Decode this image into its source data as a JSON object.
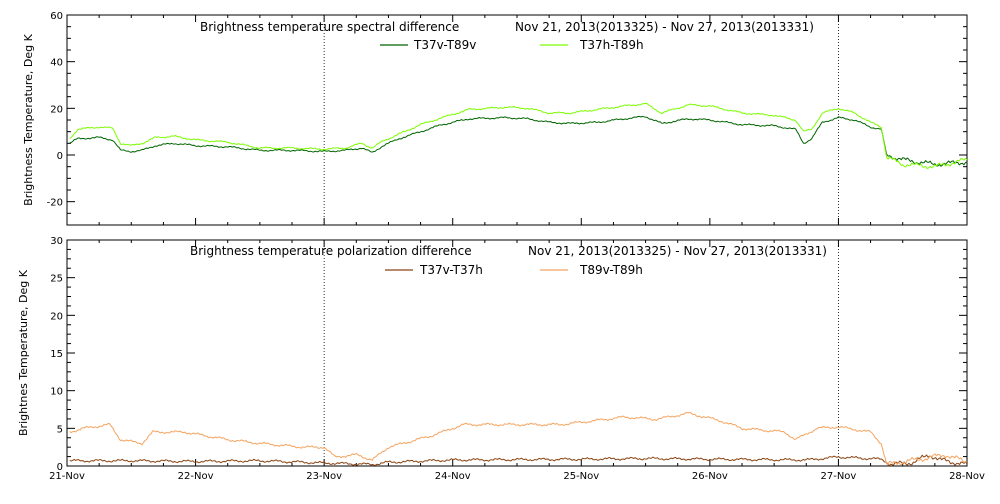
{
  "chart_data": [
    {
      "type": "line",
      "title": "Brightness temperature spectral difference",
      "date_range": "Nov 21, 2013(2013325) - Nov 27, 2013(2013331)",
      "ylabel": "Brightness Temperature, Deg K",
      "xlabel": "",
      "xlim": [
        "2013-11-21",
        "2013-11-28"
      ],
      "ylim": [
        -30,
        60
      ],
      "yticks": [
        -20,
        0,
        20,
        40,
        60
      ],
      "grid": "vertical dotted lines at Nov 23 and Nov 27",
      "legend_position": "top",
      "series": [
        {
          "name": "T37v-T89v",
          "color": "#006400",
          "points": [
            [
              "2013-11-21 00:30",
              5
            ],
            [
              "2013-11-21 02:00",
              7
            ],
            [
              "2013-11-21 06:00",
              7.5
            ],
            [
              "2013-11-21 08:30",
              6.5
            ],
            [
              "2013-11-21 10:00",
              2
            ],
            [
              "2013-11-21 12:00",
              1.5
            ],
            [
              "2013-11-21 14:00",
              2
            ],
            [
              "2013-11-21 16:30",
              4
            ],
            [
              "2013-11-21 20:00",
              5
            ],
            [
              "2013-11-22 00:00",
              4
            ],
            [
              "2013-11-22 06:00",
              3.5
            ],
            [
              "2013-11-22 12:00",
              2
            ],
            [
              "2013-11-22 18:00",
              2
            ],
            [
              "2013-11-23 00:00",
              1.5
            ],
            [
              "2013-11-23 04:00",
              2
            ],
            [
              "2013-11-23 07:00",
              3
            ],
            [
              "2013-11-23 09:00",
              1
            ],
            [
              "2013-11-23 11:00",
              4
            ],
            [
              "2013-11-23 14:00",
              7
            ],
            [
              "2013-11-23 18:00",
              10
            ],
            [
              "2013-11-23 22:00",
              13
            ],
            [
              "2013-11-24 03:00",
              15.5
            ],
            [
              "2013-11-24 10:00",
              16
            ],
            [
              "2013-11-24 14:00",
              15.5
            ],
            [
              "2013-11-24 18:00",
              14
            ],
            [
              "2013-11-24 22:00",
              13.5
            ],
            [
              "2013-11-25 03:00",
              14
            ],
            [
              "2013-11-25 08:00",
              15.5
            ],
            [
              "2013-11-25 12:00",
              16.5
            ],
            [
              "2013-11-25 15:00",
              13.5
            ],
            [
              "2013-11-25 20:00",
              15.5
            ],
            [
              "2013-11-26 00:00",
              15
            ],
            [
              "2013-11-26 06:00",
              13
            ],
            [
              "2013-11-26 12:00",
              12.5
            ],
            [
              "2013-11-26 16:00",
              11
            ],
            [
              "2013-11-26 17:30",
              5
            ],
            [
              "2013-11-26 19:00",
              7
            ],
            [
              "2013-11-26 21:00",
              14
            ],
            [
              "2013-11-27 00:00",
              16
            ],
            [
              "2013-11-27 03:00",
              15
            ],
            [
              "2013-11-27 06:00",
              12
            ],
            [
              "2013-11-27 08:00",
              11
            ],
            [
              "2013-11-27 09:00",
              0
            ],
            [
              "2013-11-27 12:00",
              -2
            ],
            [
              "2013-11-27 18:00",
              -4
            ],
            [
              "2013-11-28 00:00",
              -3
            ]
          ]
        },
        {
          "name": "T37h-T89h",
          "color": "#7cfc00",
          "points": [
            [
              "2013-11-21 00:30",
              7
            ],
            [
              "2013-11-21 02:00",
              11
            ],
            [
              "2013-11-21 06:00",
              12
            ],
            [
              "2013-11-21 08:30",
              11.5
            ],
            [
              "2013-11-21 10:00",
              5
            ],
            [
              "2013-11-21 12:00",
              4
            ],
            [
              "2013-11-21 14:00",
              5
            ],
            [
              "2013-11-21 16:30",
              7.5
            ],
            [
              "2013-11-21 20:00",
              8
            ],
            [
              "2013-11-22 00:00",
              6.5
            ],
            [
              "2013-11-22 06:00",
              5.5
            ],
            [
              "2013-11-22 12:00",
              3
            ],
            [
              "2013-11-22 18:00",
              3
            ],
            [
              "2013-11-23 00:00",
              2.5
            ],
            [
              "2013-11-23 04:00",
              3
            ],
            [
              "2013-11-23 07:00",
              5
            ],
            [
              "2013-11-23 09:00",
              3
            ],
            [
              "2013-11-23 11:00",
              6
            ],
            [
              "2013-11-23 14:00",
              9
            ],
            [
              "2013-11-23 18:00",
              13
            ],
            [
              "2013-11-23 22:00",
              16
            ],
            [
              "2013-11-24 03:00",
              19.5
            ],
            [
              "2013-11-24 10:00",
              20.5
            ],
            [
              "2013-11-24 14:00",
              20
            ],
            [
              "2013-11-24 18:00",
              18
            ],
            [
              "2013-11-24 22:00",
              18
            ],
            [
              "2013-11-25 03:00",
              19.5
            ],
            [
              "2013-11-25 08:00",
              21
            ],
            [
              "2013-11-25 12:00",
              22
            ],
            [
              "2013-11-25 15:00",
              18
            ],
            [
              "2013-11-25 20:00",
              21.5
            ],
            [
              "2013-11-26 00:00",
              21
            ],
            [
              "2013-11-26 06:00",
              18
            ],
            [
              "2013-11-26 12:00",
              17
            ],
            [
              "2013-11-26 16:00",
              15
            ],
            [
              "2013-11-26 17:30",
              10
            ],
            [
              "2013-11-26 19:00",
              11
            ],
            [
              "2013-11-26 21:00",
              18
            ],
            [
              "2013-11-27 00:00",
              20
            ],
            [
              "2013-11-27 03:00",
              18
            ],
            [
              "2013-11-27 06:00",
              14
            ],
            [
              "2013-11-27 08:00",
              12
            ],
            [
              "2013-11-27 09:00",
              -1
            ],
            [
              "2013-11-27 12:00",
              -4
            ],
            [
              "2013-11-27 18:00",
              -5
            ],
            [
              "2013-11-28 00:00",
              -2
            ]
          ]
        }
      ]
    },
    {
      "type": "line",
      "title": "Brightness temperature polarization difference",
      "date_range": "Nov 21, 2013(2013325) - Nov 27, 2013(2013331)",
      "ylabel": "Brightnes Temperature, Deg K",
      "xlabel": "",
      "xlim": [
        "2013-11-21",
        "2013-11-28"
      ],
      "ylim": [
        0,
        30
      ],
      "yticks": [
        0,
        5,
        10,
        15,
        20,
        25,
        30
      ],
      "xticks": [
        "21-Nov",
        "22-Nov",
        "23-Nov",
        "24-Nov",
        "25-Nov",
        "26-Nov",
        "27-Nov",
        "28-Nov"
      ],
      "grid": "vertical dotted lines at Nov 23 and Nov 27",
      "legend_position": "top",
      "series": [
        {
          "name": "T37v-T37h",
          "color": "#8b4513",
          "points": [
            [
              "2013-11-21 00:30",
              0.7
            ],
            [
              "2013-11-21 12:00",
              0.7
            ],
            [
              "2013-11-22 00:00",
              0.6
            ],
            [
              "2013-11-22 12:00",
              0.7
            ],
            [
              "2013-11-23 00:00",
              0.4
            ],
            [
              "2013-11-23 09:00",
              0.2
            ],
            [
              "2013-11-23 12:00",
              0.5
            ],
            [
              "2013-11-24 00:00",
              0.8
            ],
            [
              "2013-11-25 00:00",
              0.9
            ],
            [
              "2013-11-25 12:00",
              1.0
            ],
            [
              "2013-11-26 00:00",
              0.9
            ],
            [
              "2013-11-26 18:00",
              0.8
            ],
            [
              "2013-11-27 00:00",
              1.2
            ],
            [
              "2013-11-27 08:00",
              0.9
            ],
            [
              "2013-11-27 10:00",
              0.2
            ],
            [
              "2013-11-27 14:00",
              0.5
            ],
            [
              "2013-11-27 17:00",
              1.5
            ],
            [
              "2013-11-27 19:00",
              0.8
            ],
            [
              "2013-11-28 00:00",
              0.2
            ]
          ]
        },
        {
          "name": "T89v-T89h",
          "color": "#f4a460",
          "points": [
            [
              "2013-11-21 00:30",
              4.5
            ],
            [
              "2013-11-21 03:00",
              5
            ],
            [
              "2013-11-21 08:00",
              5.5
            ],
            [
              "2013-11-21 10:00",
              3.5
            ],
            [
              "2013-11-21 14:00",
              3
            ],
            [
              "2013-11-21 16:00",
              4.5
            ],
            [
              "2013-11-21 22:00",
              4.5
            ],
            [
              "2013-11-22 06:00",
              3.5
            ],
            [
              "2013-11-22 12:00",
              3
            ],
            [
              "2013-11-22 20:00",
              2.5
            ],
            [
              "2013-11-23 00:00",
              2.5
            ],
            [
              "2013-11-23 02:00",
              1.2
            ],
            [
              "2013-11-23 06:00",
              1.5
            ],
            [
              "2013-11-23 09:00",
              0.8
            ],
            [
              "2013-11-23 12:00",
              2.5
            ],
            [
              "2013-11-23 20:00",
              4
            ],
            [
              "2013-11-24 02:00",
              5.5
            ],
            [
              "2013-11-24 10:00",
              5.5
            ],
            [
              "2013-11-24 20:00",
              5.5
            ],
            [
              "2013-11-25 00:00",
              5.8
            ],
            [
              "2013-11-25 08:00",
              6.5
            ],
            [
              "2013-11-25 14:00",
              6.2
            ],
            [
              "2013-11-25 20:00",
              7
            ],
            [
              "2013-11-26 02:00",
              6
            ],
            [
              "2013-11-26 06:00",
              5
            ],
            [
              "2013-11-26 14:00",
              4.5
            ],
            [
              "2013-11-26 16:00",
              3.5
            ],
            [
              "2013-11-26 20:00",
              5
            ],
            [
              "2013-11-27 00:00",
              5.2
            ],
            [
              "2013-11-27 06:00",
              4.5
            ],
            [
              "2013-11-27 08:00",
              3
            ],
            [
              "2013-11-27 09:00",
              0.2
            ],
            [
              "2013-11-27 16:00",
              1
            ],
            [
              "2013-11-27 20:00",
              1.5
            ],
            [
              "2013-11-28 00:00",
              0.5
            ]
          ]
        }
      ]
    }
  ]
}
